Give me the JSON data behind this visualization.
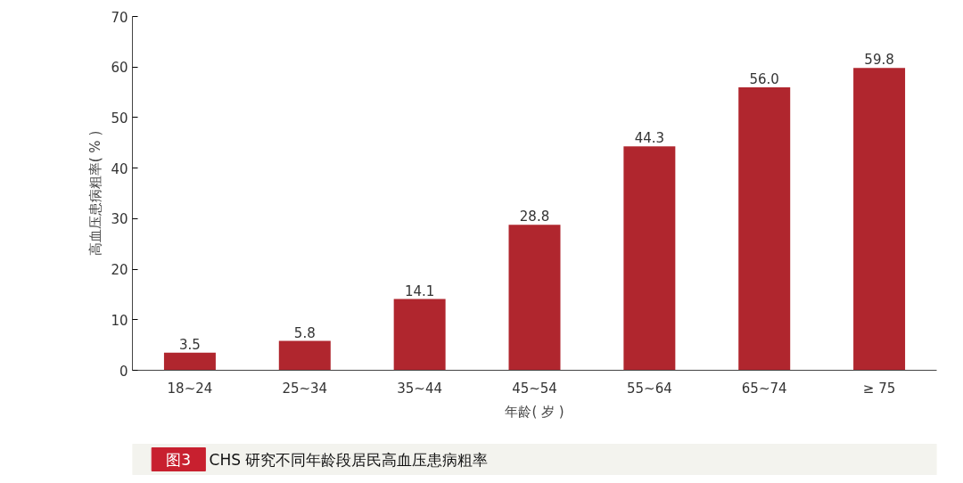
{
  "chart_data": {
    "type": "bar",
    "xlabel": "年龄( 岁 )",
    "ylabel": "高血压患病粗率( % )",
    "categories": [
      "18~24",
      "25~34",
      "35~44",
      "45~54",
      "55~64",
      "65~74",
      "≥ 75"
    ],
    "values": [
      3.5,
      5.8,
      14.1,
      28.8,
      44.3,
      56.0,
      59.8
    ],
    "value_labels": [
      "3.5",
      "5.8",
      "14.1",
      "28.8",
      "44.3",
      "56.0",
      "59.8"
    ],
    "color": "#b0262e",
    "ylim": [
      0,
      70
    ],
    "yticks": [
      0,
      10,
      20,
      30,
      40,
      50,
      60,
      70
    ],
    "grid": false,
    "annotations": [
      "图3",
      "CHS 研究不同年龄段居民高血压患病粗率"
    ]
  }
}
